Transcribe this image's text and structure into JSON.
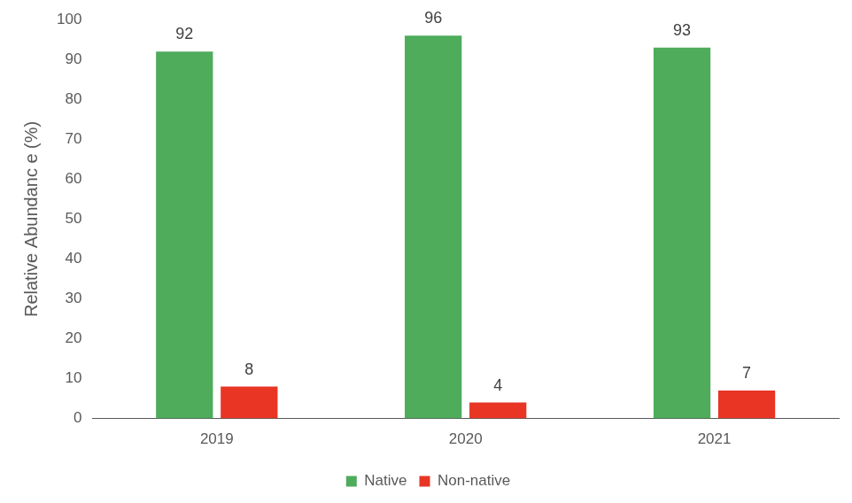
{
  "chart_data": {
    "type": "bar",
    "categories": [
      "2019",
      "2020",
      "2021"
    ],
    "series": [
      {
        "name": "Native",
        "color": "#4EAC5B",
        "values": [
          92,
          96,
          93
        ]
      },
      {
        "name": "Non-native",
        "color": "#E83524",
        "values": [
          8,
          4,
          7
        ]
      }
    ],
    "y_label": "Relative Abundanc e (%)",
    "ylim": [
      0,
      100
    ],
    "yticks": [
      0,
      10,
      20,
      30,
      40,
      50,
      60,
      70,
      80,
      90,
      100
    ],
    "grid": false,
    "legend": "bottom",
    "data_labels": true
  }
}
